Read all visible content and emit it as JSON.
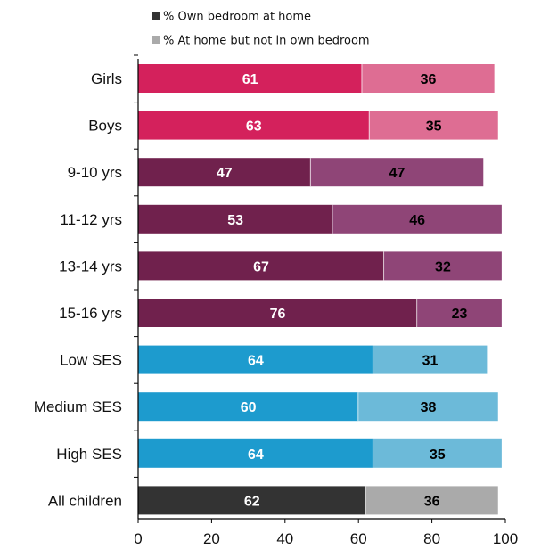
{
  "chart_data": {
    "type": "bar",
    "orientation": "horizontal",
    "stacked": true,
    "title": "",
    "xlabel": "",
    "ylabel": "",
    "xlim": [
      0,
      100
    ],
    "xticks": [
      0,
      20,
      40,
      60,
      80,
      100
    ],
    "legend_position": "top",
    "grid": false,
    "categories": [
      "Girls",
      "Boys",
      "9-10 yrs",
      "11-12 yrs",
      "13-14 yrs",
      "15-16 yrs",
      "Low SES",
      "Medium SES",
      "High SES",
      "All children"
    ],
    "series": [
      {
        "name": "% Own bedroom at home",
        "legend_color": "#333333",
        "values": [
          61,
          63,
          47,
          53,
          67,
          76,
          64,
          60,
          64,
          62
        ]
      },
      {
        "name": "% At home but not in own bedroom",
        "legend_color": "#aaaaaa",
        "values": [
          36,
          35,
          47,
          46,
          32,
          23,
          31,
          38,
          35,
          36
        ]
      }
    ],
    "bar_colors": [
      [
        "#d4215c",
        "#de6d93"
      ],
      [
        "#d4215c",
        "#de6d93"
      ],
      [
        "#70214d",
        "#8f4577"
      ],
      [
        "#70214d",
        "#8f4577"
      ],
      [
        "#70214d",
        "#8f4577"
      ],
      [
        "#70214d",
        "#8f4577"
      ],
      [
        "#1d9bce",
        "#6cbad9"
      ],
      [
        "#1d9bce",
        "#6cbad9"
      ],
      [
        "#1d9bce",
        "#6cbad9"
      ],
      [
        "#333333",
        "#aaaaaa"
      ]
    ],
    "label_colors": [
      "#ffffff",
      "#000000"
    ]
  }
}
